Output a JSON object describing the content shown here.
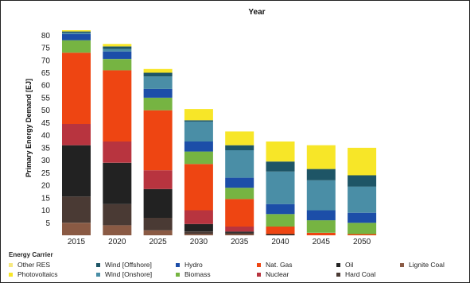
{
  "chart_data": {
    "type": "bar",
    "stacked": true,
    "title": "Year",
    "xlabel": "",
    "ylabel": "Primary Energy Demand [EJ]",
    "ylim": [
      0,
      82
    ],
    "yticks": [
      5,
      10,
      15,
      20,
      25,
      30,
      35,
      40,
      45,
      50,
      55,
      60,
      65,
      70,
      75,
      80
    ],
    "grid": false,
    "legend_title": "Energy Carrier",
    "legend_position": "bottom",
    "categories": [
      "2015",
      "2020",
      "2025",
      "2030",
      "2035",
      "2040",
      "2045",
      "2050"
    ],
    "series": [
      {
        "name": "Lignite Coal",
        "color": "#8a5a44",
        "values": [
          5,
          4,
          2,
          0.5,
          0.5,
          0,
          0,
          0
        ]
      },
      {
        "name": "Hard Coal",
        "color": "#4a3a34",
        "values": [
          10.5,
          8.5,
          5,
          1,
          0.5,
          0,
          0,
          0
        ]
      },
      {
        "name": "Oil",
        "color": "#222222",
        "values": [
          20.5,
          16.5,
          11.5,
          3,
          0.5,
          0.5,
          0,
          0
        ]
      },
      {
        "name": "Nuclear",
        "color": "#b8343f",
        "values": [
          8.5,
          8.5,
          7.5,
          5.5,
          2,
          0,
          0,
          0
        ]
      },
      {
        "name": "Nat. Gas",
        "color": "#ee4512",
        "values": [
          28.5,
          28.5,
          24,
          18.5,
          11,
          3,
          1,
          0.5
        ]
      },
      {
        "name": "Biomass",
        "color": "#76b442",
        "values": [
          5,
          4.5,
          5,
          5,
          4.5,
          5,
          5,
          4.5
        ]
      },
      {
        "name": "Hydro",
        "color": "#1c4ea8",
        "values": [
          2.5,
          3,
          3.5,
          4,
          4,
          4,
          4,
          4
        ]
      },
      {
        "name": "Wind [Onshore]",
        "color": "#4a8ea6",
        "values": [
          0.5,
          1,
          5,
          8,
          11,
          13,
          12,
          10.5
        ]
      },
      {
        "name": "Wind [Offshore]",
        "color": "#1e5566",
        "values": [
          0.5,
          1,
          1.5,
          0.5,
          2,
          4,
          4.5,
          4.5
        ]
      },
      {
        "name": "Photovoltaics",
        "color": "#f7e628",
        "values": [
          0.5,
          1,
          1.5,
          4.5,
          5.5,
          8,
          9.5,
          11
        ]
      },
      {
        "name": "Other RES",
        "color": "#f6e880",
        "values": [
          0,
          0,
          0,
          0,
          0,
          0,
          0,
          0
        ]
      }
    ]
  },
  "legend_order": [
    "Other RES",
    "Wind [Offshore]",
    "Hydro",
    "Nat. Gas",
    "Oil",
    "Lignite Coal",
    "Photovoltaics",
    "Wind [Onshore]",
    "Biomass",
    "Nuclear",
    "Hard Coal"
  ]
}
